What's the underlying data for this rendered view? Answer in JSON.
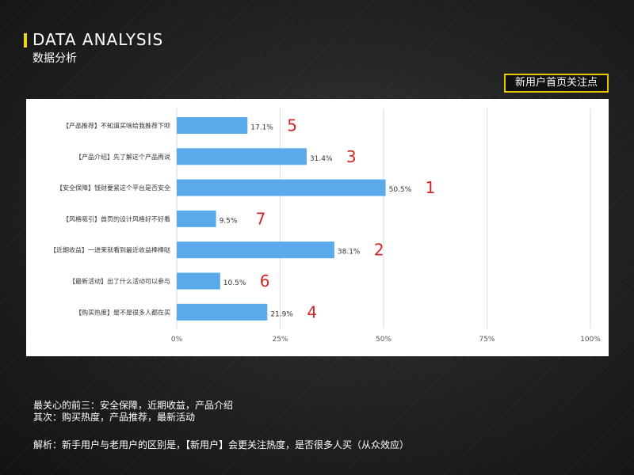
{
  "header": {
    "title_en": "DATA ANALYSIS",
    "title_cn": "数据分析"
  },
  "badge": "新用户首页关注点",
  "colors": {
    "accent": "#f0d21d",
    "badge_border": "#e6c800",
    "bar": "#5aaaeb",
    "rank": "#d42424"
  },
  "chart_data": {
    "type": "bar",
    "orientation": "horizontal",
    "categories": [
      "【产品推荐】不知道买啥给我推荐下呗",
      "【产品介绍】先了解这个产品再说",
      "【安全保障】钱财要紧这个平台是否安全",
      "【风格吸引】首页的设计风格好不好看",
      "【近期收益】一进来就看到最近收益棒棒哒",
      "【最新活动】出了什么活动可以参与",
      "【购买热度】是不是很多人都在买"
    ],
    "values": [
      17.1,
      31.4,
      50.5,
      9.5,
      38.1,
      10.5,
      21.9
    ],
    "value_labels": [
      "17.1%",
      "31.4%",
      "50.5%",
      "9.5%",
      "38.1%",
      "10.5%",
      "21.9%"
    ],
    "ranks": [
      "5",
      "3",
      "1",
      "7",
      "2",
      "6",
      "4"
    ],
    "xlim": [
      0,
      100
    ],
    "xticks": [
      "0%",
      "25%",
      "50%",
      "75%",
      "100%"
    ],
    "grid": true,
    "legend": "none"
  },
  "notes": {
    "line1": "最关心的前三：安全保障，近期收益，产品介绍",
    "line2": "其次：购买热度，产品推荐，最新活动",
    "analysis": "解析：新手用户与老用户的区别是，【新用户】会更关注热度，是否很多人买（从众效应）"
  }
}
